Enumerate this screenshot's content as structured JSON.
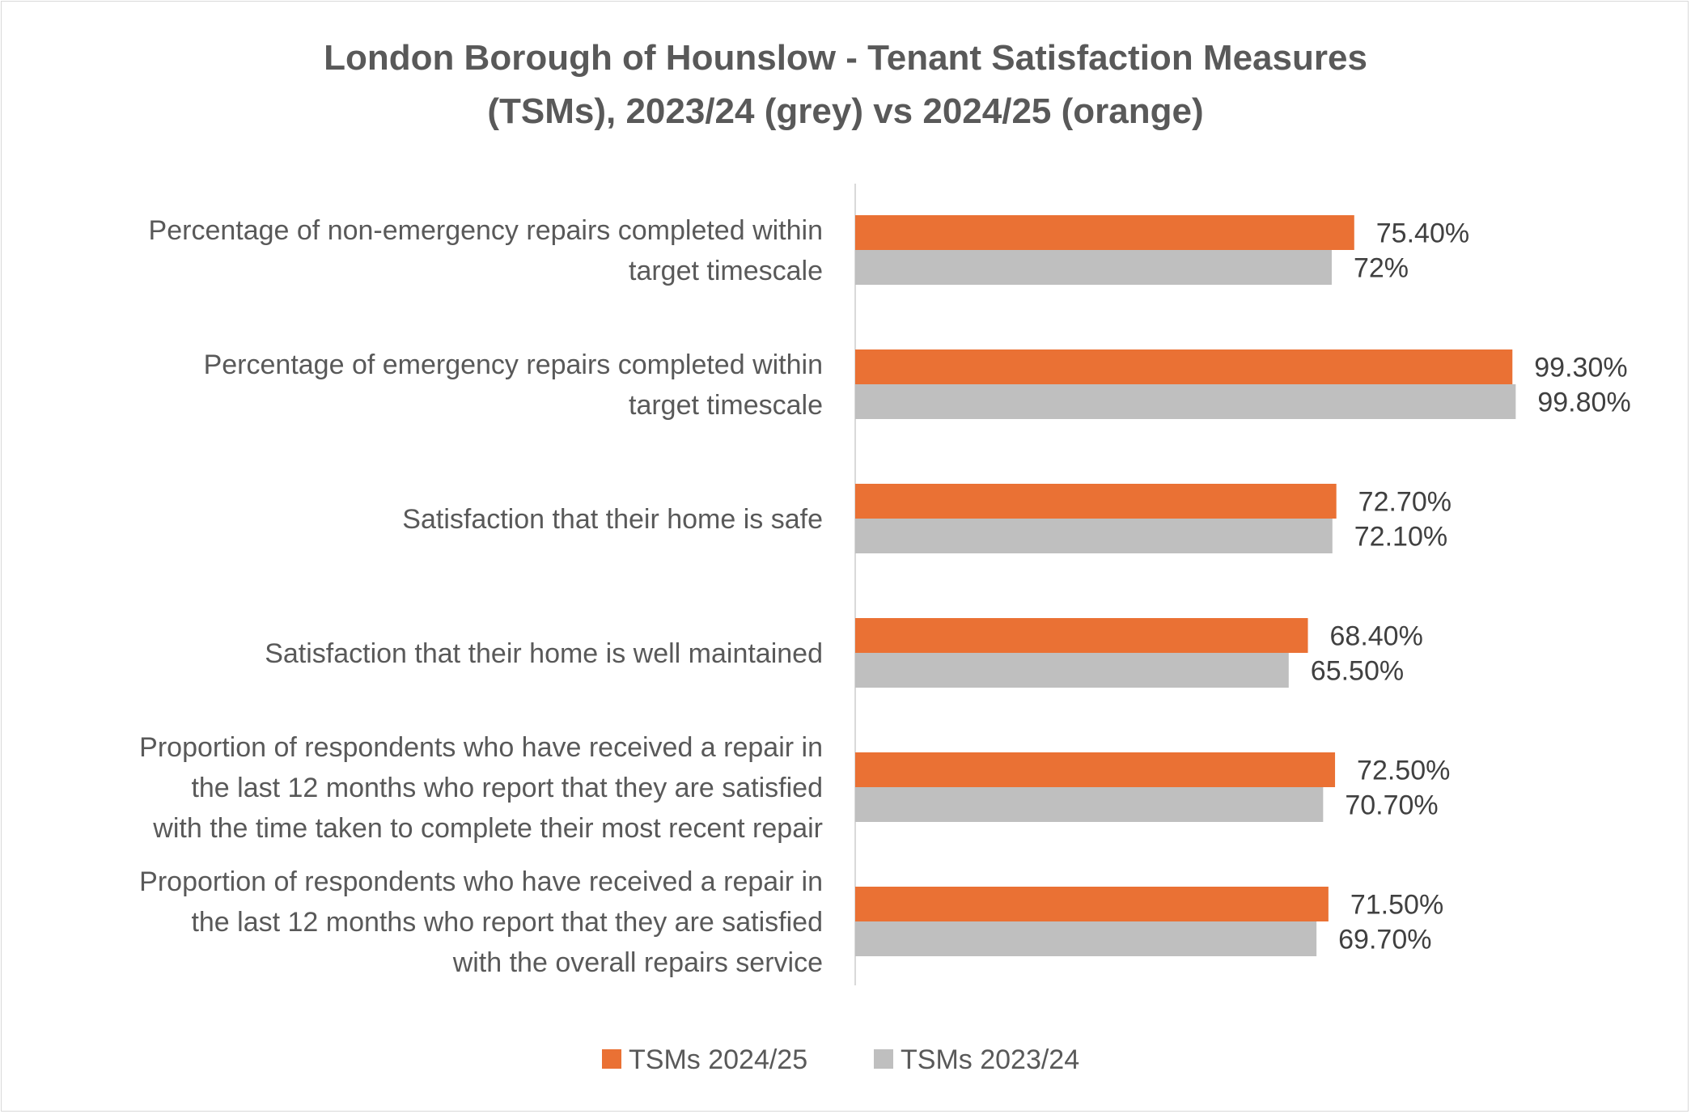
{
  "chart_data": {
    "type": "bar",
    "orientation": "horizontal",
    "title_lines": [
      "London Borough of Hounslow - Tenant Satisfaction Measures",
      "(TSMs), 2023/24 (grey) vs 2024/25 (orange)"
    ],
    "categories": [
      [
        "Percentage of non-emergency repairs completed within",
        "target timescale"
      ],
      [
        "Percentage of emergency repairs completed within",
        "target timescale"
      ],
      [
        "Satisfaction that their home is safe"
      ],
      [
        "Satisfaction that their home is well maintained"
      ],
      [
        "Proportion of respondents who have received a repair in",
        "the last 12 months who report that they are satisfied",
        "with the time taken to complete their most recent repair"
      ],
      [
        "Proportion of respondents who have received a repair in",
        "the last 12 months who report that they are satisfied",
        "with the overall repairs service"
      ]
    ],
    "series": [
      {
        "name": "TSMs 2024/25",
        "color": "#EA7134",
        "values": [
          75.4,
          99.3,
          72.7,
          68.4,
          72.5,
          71.5
        ],
        "labels": [
          "75.40%",
          "99.30%",
          "72.70%",
          "68.40%",
          "72.50%",
          "71.50%"
        ]
      },
      {
        "name": "TSMs 2023/24",
        "color": "#BFBFBF",
        "values": [
          72,
          99.8,
          72.1,
          65.5,
          70.7,
          69.7
        ],
        "labels": [
          "72%",
          "99.80%",
          "72.10%",
          "65.50%",
          "70.70%",
          "69.70%"
        ]
      }
    ],
    "xlim": [
      0,
      100
    ],
    "grid": false,
    "axis_labels_shown": false,
    "legend_position": "bottom"
  }
}
